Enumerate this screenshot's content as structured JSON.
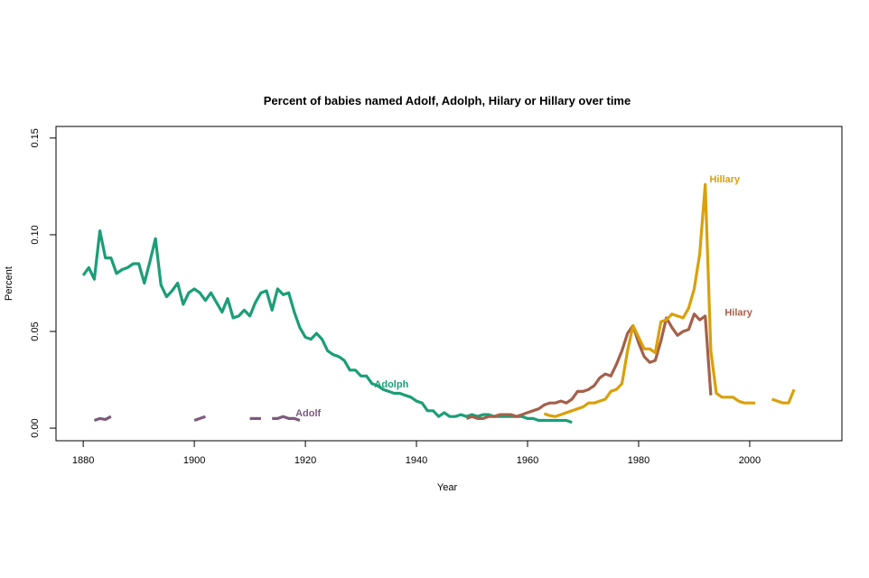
{
  "chart_data": {
    "type": "line",
    "title": "Percent of babies named Adolf, Adolph, Hilary or Hillary over time",
    "xlabel": "Year",
    "ylabel": "Percent",
    "xlim": [
      1875.1,
      2016.6
    ],
    "ylim": [
      -0.0065,
      0.156
    ],
    "xticks": [
      1880,
      1900,
      1920,
      1940,
      1960,
      1980,
      2000
    ],
    "yticks": [
      0.0,
      0.05,
      0.1,
      0.15
    ],
    "ytick_labels": [
      "0.00",
      "0.05",
      "0.10",
      "0.15"
    ],
    "grid": false,
    "legend": "none (direct labels)",
    "series": [
      {
        "name": "Adolph",
        "color": "#1b9e77",
        "label_at": [
          1935.5,
          0.023
        ],
        "segments": [
          [
            [
              1880,
              0.079
            ],
            [
              1881,
              0.083
            ],
            [
              1882,
              0.077
            ],
            [
              1883,
              0.102
            ],
            [
              1884,
              0.088
            ],
            [
              1885,
              0.088
            ],
            [
              1886,
              0.08
            ],
            [
              1887,
              0.082
            ],
            [
              1888,
              0.083
            ],
            [
              1889,
              0.085
            ],
            [
              1890,
              0.085
            ],
            [
              1891,
              0.075
            ],
            [
              1892,
              0.086
            ],
            [
              1893,
              0.098
            ],
            [
              1894,
              0.074
            ],
            [
              1895,
              0.068
            ],
            [
              1896,
              0.071
            ],
            [
              1897,
              0.075
            ],
            [
              1898,
              0.064
            ],
            [
              1899,
              0.07
            ],
            [
              1900,
              0.072
            ],
            [
              1901,
              0.07
            ],
            [
              1902,
              0.066
            ],
            [
              1903,
              0.07
            ],
            [
              1904,
              0.065
            ],
            [
              1905,
              0.06
            ],
            [
              1906,
              0.067
            ],
            [
              1907,
              0.057
            ],
            [
              1908,
              0.058
            ],
            [
              1909,
              0.061
            ],
            [
              1910,
              0.058
            ],
            [
              1911,
              0.065
            ],
            [
              1912,
              0.07
            ],
            [
              1913,
              0.071
            ],
            [
              1914,
              0.061
            ],
            [
              1915,
              0.072
            ],
            [
              1916,
              0.069
            ],
            [
              1917,
              0.07
            ],
            [
              1918,
              0.06
            ],
            [
              1919,
              0.052
            ],
            [
              1920,
              0.047
            ],
            [
              1921,
              0.046
            ],
            [
              1922,
              0.049
            ],
            [
              1923,
              0.046
            ],
            [
              1924,
              0.04
            ],
            [
              1925,
              0.038
            ],
            [
              1926,
              0.037
            ],
            [
              1927,
              0.035
            ],
            [
              1928,
              0.03
            ],
            [
              1929,
              0.03
            ],
            [
              1930,
              0.027
            ],
            [
              1931,
              0.027
            ],
            [
              1932,
              0.023
            ],
            [
              1933,
              0.022
            ],
            [
              1934,
              0.02
            ],
            [
              1935,
              0.019
            ],
            [
              1936,
              0.018
            ],
            [
              1937,
              0.018
            ],
            [
              1938,
              0.017
            ],
            [
              1939,
              0.016
            ],
            [
              1940,
              0.014
            ],
            [
              1941,
              0.013
            ],
            [
              1942,
              0.009
            ],
            [
              1943,
              0.009
            ],
            [
              1944,
              0.006
            ],
            [
              1945,
              0.008
            ],
            [
              1946,
              0.006
            ],
            [
              1947,
              0.006
            ],
            [
              1948,
              0.007
            ],
            [
              1949,
              0.006
            ],
            [
              1950,
              0.007
            ],
            [
              1951,
              0.006
            ],
            [
              1952,
              0.007
            ],
            [
              1953,
              0.007
            ],
            [
              1954,
              0.006
            ],
            [
              1955,
              0.006
            ],
            [
              1956,
              0.006
            ],
            [
              1957,
              0.006
            ],
            [
              1958,
              0.006
            ],
            [
              1959,
              0.006
            ],
            [
              1960,
              0.005
            ],
            [
              1961,
              0.005
            ],
            [
              1962,
              0.004
            ],
            [
              1963,
              0.004
            ],
            [
              1964,
              0.004
            ],
            [
              1965,
              0.004
            ],
            [
              1966,
              0.004
            ],
            [
              1967,
              0.004
            ],
            [
              1968,
              0.003
            ]
          ]
        ]
      },
      {
        "name": "Adolf",
        "color": "#7d5a7d",
        "label_at": [
          1920.5,
          0.008
        ],
        "segments": [
          [
            [
              1882,
              0.004
            ],
            [
              1883,
              0.005
            ],
            [
              1884,
              0.0045
            ],
            [
              1885,
              0.006
            ]
          ],
          [
            [
              1900,
              0.004
            ],
            [
              1901,
              0.005
            ],
            [
              1902,
              0.006
            ]
          ],
          [
            [
              1910,
              0.005
            ],
            [
              1911,
              0.005
            ],
            [
              1912,
              0.005
            ]
          ],
          [
            [
              1914,
              0.005
            ],
            [
              1915,
              0.005
            ],
            [
              1916,
              0.006
            ],
            [
              1917,
              0.005
            ],
            [
              1918,
              0.005
            ],
            [
              1919,
              0.004
            ]
          ]
        ]
      },
      {
        "name": "Hilary",
        "color": "#a5604a",
        "label_at": [
          1998,
          0.06
        ],
        "segments": [
          [
            [
              1949,
              0.005
            ],
            [
              1950,
              0.006
            ],
            [
              1951,
              0.005
            ],
            [
              1952,
              0.005
            ],
            [
              1953,
              0.006
            ],
            [
              1954,
              0.006
            ],
            [
              1955,
              0.007
            ],
            [
              1956,
              0.007
            ],
            [
              1957,
              0.007
            ],
            [
              1958,
              0.006
            ],
            [
              1959,
              0.007
            ],
            [
              1960,
              0.008
            ],
            [
              1961,
              0.009
            ],
            [
              1962,
              0.01
            ],
            [
              1963,
              0.012
            ],
            [
              1964,
              0.013
            ],
            [
              1965,
              0.013
            ],
            [
              1966,
              0.014
            ],
            [
              1967,
              0.013
            ],
            [
              1968,
              0.015
            ],
            [
              1969,
              0.019
            ],
            [
              1970,
              0.019
            ],
            [
              1971,
              0.02
            ],
            [
              1972,
              0.022
            ],
            [
              1973,
              0.026
            ],
            [
              1974,
              0.028
            ],
            [
              1975,
              0.027
            ],
            [
              1976,
              0.033
            ],
            [
              1977,
              0.04
            ],
            [
              1978,
              0.049
            ],
            [
              1979,
              0.053
            ],
            [
              1980,
              0.044
            ],
            [
              1981,
              0.037
            ],
            [
              1982,
              0.034
            ],
            [
              1983,
              0.035
            ],
            [
              1984,
              0.045
            ],
            [
              1985,
              0.057
            ],
            [
              1986,
              0.052
            ],
            [
              1987,
              0.048
            ],
            [
              1988,
              0.05
            ],
            [
              1989,
              0.051
            ],
            [
              1990,
              0.059
            ],
            [
              1991,
              0.056
            ],
            [
              1992,
              0.058
            ],
            [
              1993,
              0.017
            ]
          ]
        ]
      },
      {
        "name": "Hillary",
        "color": "#d9a00a",
        "label_at": [
          1995.5,
          0.129
        ],
        "segments": [
          [
            [
              1963,
              0.0075
            ],
            [
              1964,
              0.0065
            ],
            [
              1965,
              0.006
            ],
            [
              1966,
              0.007
            ],
            [
              1967,
              0.008
            ],
            [
              1968,
              0.009
            ],
            [
              1969,
              0.01
            ],
            [
              1970,
              0.011
            ],
            [
              1971,
              0.013
            ],
            [
              1972,
              0.013
            ],
            [
              1973,
              0.014
            ],
            [
              1974,
              0.015
            ],
            [
              1975,
              0.019
            ],
            [
              1976,
              0.02
            ],
            [
              1977,
              0.023
            ],
            [
              1978,
              0.04
            ],
            [
              1979,
              0.053
            ],
            [
              1980,
              0.047
            ],
            [
              1981,
              0.041
            ],
            [
              1982,
              0.041
            ],
            [
              1983,
              0.039
            ],
            [
              1984,
              0.055
            ],
            [
              1985,
              0.056
            ],
            [
              1986,
              0.059
            ],
            [
              1987,
              0.058
            ],
            [
              1988,
              0.057
            ],
            [
              1989,
              0.062
            ],
            [
              1990,
              0.072
            ],
            [
              1991,
              0.09
            ],
            [
              1992,
              0.126
            ],
            [
              1993,
              0.04
            ],
            [
              1994,
              0.018
            ],
            [
              1995,
              0.016
            ],
            [
              1996,
              0.016
            ],
            [
              1997,
              0.016
            ],
            [
              1998,
              0.014
            ],
            [
              1999,
              0.013
            ],
            [
              2000,
              0.013
            ],
            [
              2001,
              0.013
            ]
          ],
          [
            [
              2004,
              0.015
            ],
            [
              2005,
              0.014
            ],
            [
              2006,
              0.013
            ],
            [
              2007,
              0.013
            ],
            [
              2008,
              0.02
            ]
          ]
        ]
      }
    ]
  }
}
